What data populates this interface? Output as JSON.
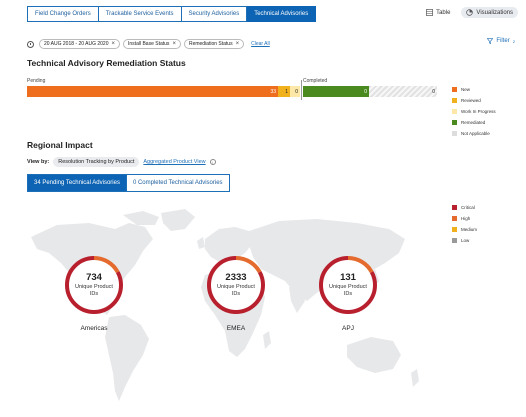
{
  "tabs": [
    {
      "label": "Field Change Orders",
      "active": false
    },
    {
      "label": "Trackable Service Events",
      "active": false
    },
    {
      "label": "Security Advisories",
      "active": false
    },
    {
      "label": "Technical Advisories",
      "active": true
    }
  ],
  "view_toggle": {
    "table_label": "Table",
    "visualizations_label": "Visualizations"
  },
  "filters": {
    "chips": [
      "20 AUG 2018 - 20 AUG 2020",
      "Install Base Status",
      "Remediation Status"
    ],
    "clear_label": "Clear All",
    "filter_label": "Filter",
    "filter_count": "2"
  },
  "remediation": {
    "title": "Technical Advisory Remediation Status",
    "pending_label": "Pending",
    "completed_label": "Completed",
    "segments": [
      {
        "status": "New",
        "value": "33",
        "color": "#ee6e1e"
      },
      {
        "status": "Reviewed",
        "value": "1",
        "color": "#f0b11c"
      },
      {
        "status": "Work In Progress",
        "value": "0",
        "color": "#fde8a8"
      },
      {
        "status": "Remediated",
        "value": "0",
        "color": "#4a8a1e"
      },
      {
        "status": "Not Applicable",
        "value": "0",
        "color": "#dddddd"
      }
    ],
    "legend": [
      {
        "label": "New",
        "color": "#ee6e1e"
      },
      {
        "label": "Reviewed",
        "color": "#f0b11c"
      },
      {
        "label": "Work In Progress",
        "color": "#fde8a8"
      },
      {
        "label": "Remediated",
        "color": "#4a8a1e"
      },
      {
        "label": "Not Applicable",
        "color": "#dddddd"
      }
    ]
  },
  "regional": {
    "title": "Regional Impact",
    "view_by_label": "View by:",
    "view_options": [
      "Resolution Tracking by Product",
      "Aggregated Product View"
    ],
    "sub_tabs": [
      "34 Pending Technical Advisories",
      "0 Completed Technical Advisories"
    ],
    "legend": [
      {
        "label": "Critical",
        "color": "#b8202e"
      },
      {
        "label": "High",
        "color": "#e46a2d"
      },
      {
        "label": "Medium",
        "color": "#f0b11c"
      },
      {
        "label": "Low",
        "color": "#9a9a9a"
      }
    ],
    "regions": [
      {
        "name": "Americas",
        "value": "734",
        "sub": "Unique Product IDs",
        "critical_fraction": 0.83,
        "high_fraction": 0.17
      },
      {
        "name": "EMEA",
        "value": "2333",
        "sub": "Unique Product IDs",
        "critical_fraction": 0.83,
        "high_fraction": 0.17
      },
      {
        "name": "APJ",
        "value": "131",
        "sub": "Unique Product IDs",
        "critical_fraction": 0.83,
        "high_fraction": 0.17
      }
    ]
  }
}
